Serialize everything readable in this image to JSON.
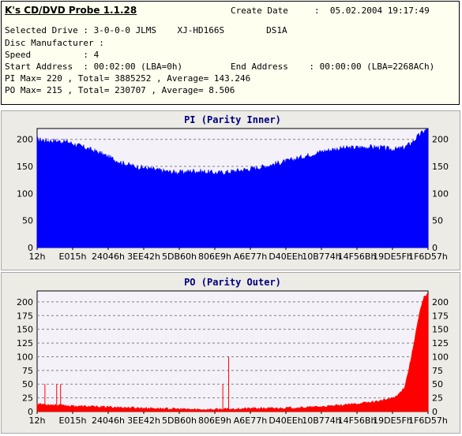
{
  "app_title": "K's CD/DVD Probe 1.1.28",
  "info": {
    "create_date_label": "Create Date",
    "create_date_value": ":  05.02.2004 19:17:49",
    "selected_drive": "Selected Drive : 3-0-0-0 JLMS    XJ-HD166S        DS1A",
    "disc_manufacturer": "Disc Manufacturer :",
    "speed": "Speed          : 4",
    "start_address": "Start Address  : 00:02:00 (LBA=0h)",
    "end_address": "End Address    : 00:00:00 (LBA=2268ACh)",
    "pi_stats": "PI Max= 220 , Total= 3885252 , Average= 143.246",
    "po_stats": "PO Max= 215 , Total= 230707 , Average= 8.506"
  },
  "colors": {
    "fill": "#0000ff",
    "po_fill": "#ff0000",
    "panel": "#ecebe6",
    "plot_bg": "#f4f2f8",
    "title": "#000080"
  },
  "chart_data": [
    {
      "type": "area",
      "title": "PI (Parity Inner)",
      "xlabel": "",
      "ylabel": "",
      "ylim": [
        0,
        220
      ],
      "yticks": [
        0,
        50,
        100,
        150,
        200
      ],
      "grid": true,
      "x_tick_labels": [
        "12h",
        "E015h",
        "24046h",
        "3EE42h",
        "5DB60h",
        "806E9h",
        "A6E77h",
        "D40EEh",
        "10B774h",
        "14F56Bh",
        "19DE5Fh",
        "1F6D57h"
      ],
      "x": [
        0,
        0.02,
        0.05,
        0.08,
        0.1,
        0.13,
        0.16,
        0.19,
        0.22,
        0.25,
        0.28,
        0.31,
        0.34,
        0.37,
        0.4,
        0.43,
        0.46,
        0.49,
        0.52,
        0.55,
        0.58,
        0.61,
        0.64,
        0.67,
        0.7,
        0.73,
        0.76,
        0.79,
        0.82,
        0.85,
        0.88,
        0.9,
        0.92,
        0.94,
        0.96,
        0.98,
        1.0
      ],
      "values": [
        200,
        198,
        197,
        195,
        190,
        183,
        175,
        165,
        156,
        150,
        147,
        143,
        140,
        139,
        142,
        140,
        138,
        140,
        143,
        146,
        150,
        155,
        160,
        166,
        172,
        178,
        182,
        184,
        185,
        186,
        185,
        182,
        182,
        185,
        195,
        210,
        220
      ]
    },
    {
      "type": "area",
      "title": "PO (Parity Outer)",
      "xlabel": "",
      "ylabel": "",
      "ylim": [
        0,
        220
      ],
      "yticks": [
        0,
        25,
        50,
        75,
        100,
        125,
        150,
        175,
        200
      ],
      "grid": true,
      "x_tick_labels": [
        "12h",
        "E015h",
        "24046h",
        "3EE42h",
        "5DB60h",
        "806E9h",
        "A6E77h",
        "D40EEh",
        "10B774h",
        "14F56Bh",
        "19DE5Fh",
        "1F6D57h"
      ],
      "x": [
        0,
        0.05,
        0.1,
        0.15,
        0.2,
        0.25,
        0.3,
        0.35,
        0.4,
        0.45,
        0.5,
        0.55,
        0.6,
        0.65,
        0.7,
        0.75,
        0.8,
        0.85,
        0.88,
        0.9,
        0.92,
        0.94,
        0.95,
        0.96,
        0.97,
        0.98,
        0.99,
        1.0
      ],
      "values": [
        14,
        12,
        10,
        9,
        8,
        7,
        6,
        5,
        4,
        4,
        5,
        6,
        6,
        7,
        8,
        10,
        13,
        17,
        20,
        23,
        28,
        45,
        75,
        110,
        150,
        185,
        210,
        215
      ],
      "spikes": [
        {
          "x": 0.02,
          "y": 50
        },
        {
          "x": 0.05,
          "y": 50
        },
        {
          "x": 0.06,
          "y": 50
        },
        {
          "x": 0.475,
          "y": 50
        },
        {
          "x": 0.49,
          "y": 100
        }
      ]
    }
  ]
}
